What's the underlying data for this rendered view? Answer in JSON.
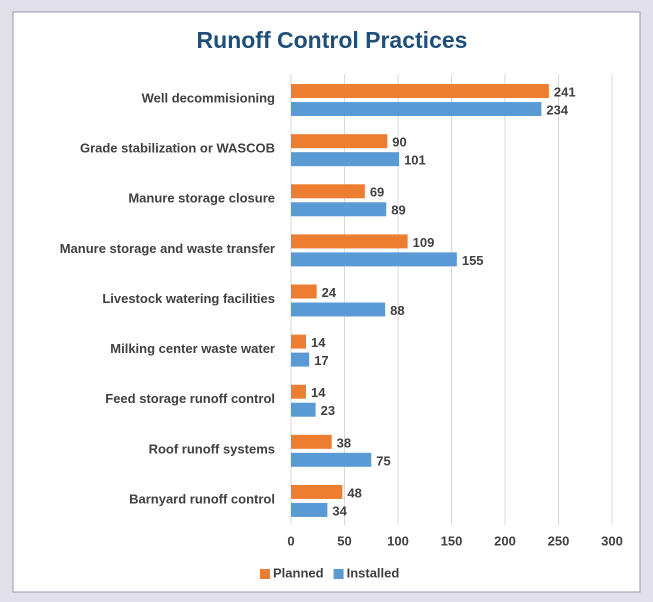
{
  "chart_data": {
    "type": "hbar",
    "title": "Runoff Control Practices",
    "categories": [
      "Well decommisioning",
      "Grade stabilization or WASCOB",
      "Manure storage closure",
      "Manure storage and waste transfer",
      "Livestock watering facilities",
      "Milking center waste water",
      "Feed storage runoff control",
      "Roof runoff systems",
      "Barnyard runoff control"
    ],
    "series": [
      {
        "name": "Planned",
        "color": "#ed7d31",
        "values": [
          241,
          90,
          69,
          109,
          24,
          14,
          14,
          38,
          48
        ]
      },
      {
        "name": "Installed",
        "color": "#5b9bd5",
        "values": [
          234,
          101,
          89,
          155,
          88,
          17,
          23,
          75,
          34
        ]
      }
    ],
    "xlim": [
      0,
      300
    ],
    "xticks": [
      0,
      50,
      100,
      150,
      200,
      250,
      300
    ],
    "grid": true,
    "legend": "bottom"
  }
}
